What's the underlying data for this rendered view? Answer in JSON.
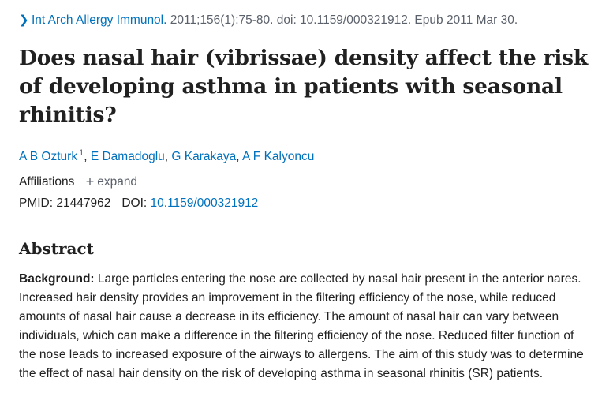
{
  "citation": {
    "journal": "Int Arch Allergy Immunol.",
    "details": "2011;156(1):75-80. doi: 10.1159/000321912. Epub 2011 Mar 30."
  },
  "title": "Does nasal hair (vibrissae) density affect the risk of developing asthma in patients with seasonal rhinitis?",
  "authors": [
    {
      "name": "A B Ozturk",
      "aff": "1"
    },
    {
      "name": "E Damadoglu"
    },
    {
      "name": "G Karakaya"
    },
    {
      "name": "A F Kalyoncu"
    }
  ],
  "affiliations": {
    "label": "Affiliations",
    "expand_label": "expand"
  },
  "ids": {
    "pmid_label": "PMID:",
    "pmid": "21447962",
    "doi_label": "DOI:",
    "doi": "10.1159/000321912"
  },
  "abstract": {
    "heading": "Abstract",
    "background_label": "Background:",
    "background_text": "Large particles entering the nose are collected by nasal hair present in the anterior nares. Increased hair density provides an improvement in the filtering efficiency of the nose, while reduced amounts of nasal hair cause a decrease in its efficiency. The amount of nasal hair can vary between individuals, which can make a difference in the filtering efficiency of the nose. Reduced filter function of the nose leads to increased exposure of the airways to allergens. The aim of this study was to determine the effect of nasal hair density on the risk of developing asthma in seasonal rhinitis (SR) patients."
  }
}
